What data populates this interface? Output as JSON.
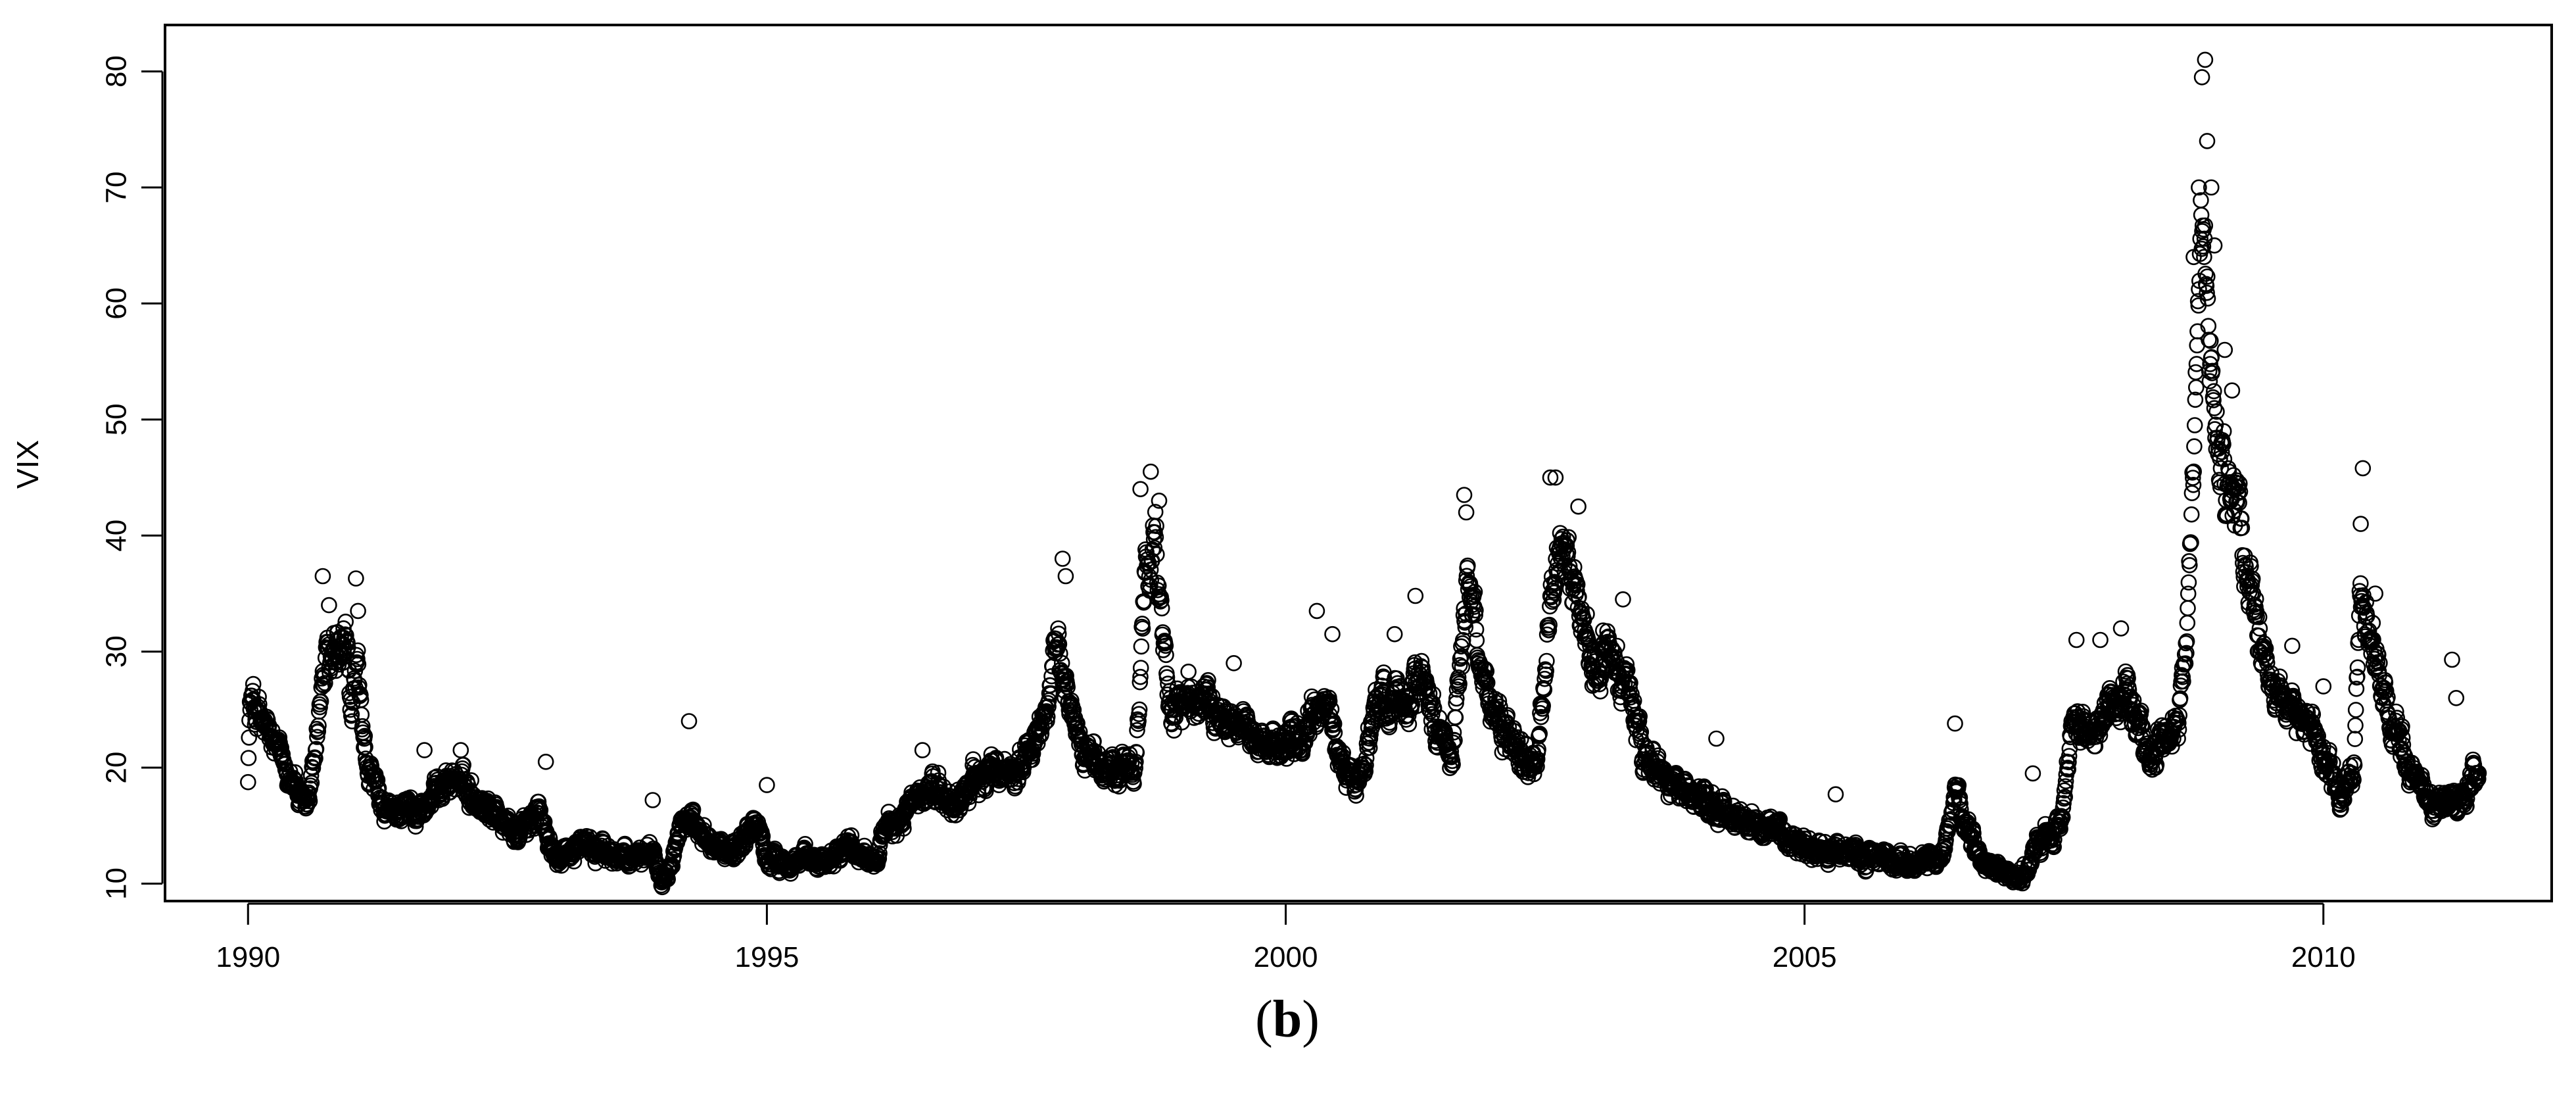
{
  "chart_data": {
    "type": "scatter",
    "marker": "open-circle",
    "ylabel": "VIX",
    "xlabel": "",
    "panel_label": {
      "open": "(",
      "letter": "b",
      "close": ")"
    },
    "xlim": [
      1989.2,
      2012.2
    ],
    "ylim": [
      8.5,
      84
    ],
    "x_ticks": [
      1990,
      1995,
      2000,
      2005,
      2010
    ],
    "y_ticks": [
      10,
      20,
      30,
      40,
      50,
      60,
      70,
      80
    ],
    "grid": false,
    "legend": "none",
    "sample_step_years": 0.0045,
    "series": [
      {
        "x_start": 1990.0,
        "x_end": 2011.5,
        "level_points": [
          [
            1990.0,
            20
          ],
          [
            1990.02,
            25.5
          ],
          [
            1990.08,
            25
          ],
          [
            1990.15,
            23.5
          ],
          [
            1990.3,
            21
          ],
          [
            1990.45,
            19
          ],
          [
            1990.5,
            17
          ],
          [
            1990.55,
            16
          ],
          [
            1990.6,
            18
          ],
          [
            1990.65,
            22
          ],
          [
            1990.7,
            26
          ],
          [
            1990.75,
            29
          ],
          [
            1990.85,
            29
          ],
          [
            1990.95,
            30
          ],
          [
            1991.0,
            24
          ],
          [
            1991.05,
            30
          ],
          [
            1991.1,
            22
          ],
          [
            1991.2,
            19
          ],
          [
            1991.3,
            16
          ],
          [
            1991.5,
            16.5
          ],
          [
            1991.7,
            16.5
          ],
          [
            1991.9,
            19
          ],
          [
            1992.0,
            19
          ],
          [
            1992.2,
            17.5
          ],
          [
            1992.4,
            16
          ],
          [
            1992.6,
            14
          ],
          [
            1992.8,
            16.5
          ],
          [
            1992.9,
            13
          ],
          [
            1993.0,
            12.5
          ],
          [
            1993.2,
            13.5
          ],
          [
            1993.5,
            12.5
          ],
          [
            1993.7,
            12
          ],
          [
            1993.9,
            13
          ],
          [
            1994.0,
            10.5
          ],
          [
            1994.1,
            13
          ],
          [
            1994.2,
            16
          ],
          [
            1994.3,
            14.5
          ],
          [
            1994.5,
            13
          ],
          [
            1994.7,
            13
          ],
          [
            1994.9,
            15.5
          ],
          [
            1995.0,
            12
          ],
          [
            1995.2,
            12
          ],
          [
            1995.5,
            12
          ],
          [
            1995.8,
            13.5
          ],
          [
            1996.0,
            12
          ],
          [
            1996.2,
            15
          ],
          [
            1996.4,
            16.5
          ],
          [
            1996.6,
            18.5
          ],
          [
            1996.8,
            16.5
          ],
          [
            1997.0,
            19
          ],
          [
            1997.2,
            19.5
          ],
          [
            1997.4,
            20
          ],
          [
            1997.6,
            22
          ],
          [
            1997.8,
            30
          ],
          [
            1997.9,
            26
          ],
          [
            1998.0,
            23
          ],
          [
            1998.2,
            20
          ],
          [
            1998.45,
            20
          ],
          [
            1998.55,
            19
          ],
          [
            1998.65,
            38
          ],
          [
            1998.75,
            40
          ],
          [
            1998.8,
            32
          ],
          [
            1998.9,
            25
          ],
          [
            1999.1,
            26
          ],
          [
            1999.5,
            24
          ],
          [
            1999.8,
            22
          ],
          [
            2000.0,
            22
          ],
          [
            2000.2,
            23
          ],
          [
            2000.4,
            26
          ],
          [
            2000.5,
            21
          ],
          [
            2000.7,
            18.5
          ],
          [
            2000.9,
            26
          ],
          [
            2001.1,
            26
          ],
          [
            2001.3,
            28
          ],
          [
            2001.45,
            24
          ],
          [
            2001.6,
            21
          ],
          [
            2001.7,
            30
          ],
          [
            2001.75,
            37
          ],
          [
            2001.85,
            31
          ],
          [
            2002.0,
            24
          ],
          [
            2002.2,
            22
          ],
          [
            2002.4,
            20
          ],
          [
            2002.5,
            28
          ],
          [
            2002.6,
            38
          ],
          [
            2002.75,
            36
          ],
          [
            2002.85,
            33
          ],
          [
            2002.95,
            28
          ],
          [
            2003.1,
            30
          ],
          [
            2003.3,
            27
          ],
          [
            2003.45,
            21
          ],
          [
            2003.7,
            19
          ],
          [
            2004.0,
            17
          ],
          [
            2004.3,
            16
          ],
          [
            2004.6,
            15
          ],
          [
            2004.9,
            14
          ],
          [
            2005.1,
            13
          ],
          [
            2005.5,
            12.5
          ],
          [
            2005.9,
            12
          ],
          [
            2006.2,
            12
          ],
          [
            2006.35,
            13
          ],
          [
            2006.45,
            17
          ],
          [
            2006.55,
            15
          ],
          [
            2006.7,
            12
          ],
          [
            2006.9,
            11
          ],
          [
            2007.0,
            10.5
          ],
          [
            2007.15,
            11
          ],
          [
            2007.25,
            14
          ],
          [
            2007.4,
            14
          ],
          [
            2007.5,
            17
          ],
          [
            2007.6,
            25
          ],
          [
            2007.75,
            22
          ],
          [
            2007.9,
            25
          ],
          [
            2008.0,
            25
          ],
          [
            2008.1,
            27
          ],
          [
            2008.2,
            24
          ],
          [
            2008.35,
            21
          ],
          [
            2008.5,
            22
          ],
          [
            2008.6,
            23
          ],
          [
            2008.7,
            33
          ],
          [
            2008.78,
            55
          ],
          [
            2008.82,
            66
          ],
          [
            2008.9,
            58
          ],
          [
            2008.95,
            50
          ],
          [
            2009.0,
            45
          ],
          [
            2009.15,
            44
          ],
          [
            2009.3,
            36
          ],
          [
            2009.45,
            29
          ],
          [
            2009.6,
            26
          ],
          [
            2009.8,
            24
          ],
          [
            2009.9,
            23
          ],
          [
            2010.0,
            21
          ],
          [
            2010.2,
            17
          ],
          [
            2010.3,
            20
          ],
          [
            2010.35,
            34
          ],
          [
            2010.45,
            32
          ],
          [
            2010.55,
            27
          ],
          [
            2010.7,
            24
          ],
          [
            2010.9,
            19
          ],
          [
            2011.0,
            17
          ],
          [
            2011.2,
            17
          ],
          [
            2011.35,
            17
          ],
          [
            2011.45,
            19
          ],
          [
            2011.5,
            19
          ]
        ],
        "spikes": [
          [
            1990.05,
            27.2
          ],
          [
            1990.72,
            36.5
          ],
          [
            1990.78,
            34
          ],
          [
            1990.92,
            32
          ],
          [
            1991.04,
            36.3
          ],
          [
            1991.06,
            33.5
          ],
          [
            1991.7,
            21.5
          ],
          [
            1992.05,
            21.5
          ],
          [
            1992.87,
            20.5
          ],
          [
            1993.9,
            17.2
          ],
          [
            1994.25,
            24
          ],
          [
            1995.0,
            18.5
          ],
          [
            1996.5,
            21.5
          ],
          [
            1997.85,
            38
          ],
          [
            1997.88,
            36.5
          ],
          [
            1998.6,
            44
          ],
          [
            1998.7,
            45.5
          ],
          [
            1998.78,
            43
          ],
          [
            1999.5,
            29
          ],
          [
            2000.3,
            33.5
          ],
          [
            2000.45,
            31.5
          ],
          [
            2001.05,
            31.5
          ],
          [
            2001.25,
            34.8
          ],
          [
            2001.72,
            43.5
          ],
          [
            2001.74,
            42
          ],
          [
            2002.55,
            45
          ],
          [
            2002.6,
            45
          ],
          [
            2002.82,
            42.5
          ],
          [
            2003.25,
            34.5
          ],
          [
            2004.15,
            22.5
          ],
          [
            2005.3,
            17.7
          ],
          [
            2006.45,
            23.8
          ],
          [
            2007.2,
            19.5
          ],
          [
            2007.62,
            31
          ],
          [
            2007.85,
            31
          ],
          [
            2008.05,
            32
          ],
          [
            2008.75,
            64
          ],
          [
            2008.8,
            70
          ],
          [
            2008.83,
            79.5
          ],
          [
            2008.86,
            81
          ],
          [
            2008.88,
            74
          ],
          [
            2008.92,
            70
          ],
          [
            2008.95,
            65
          ],
          [
            2009.05,
            56
          ],
          [
            2009.12,
            52.5
          ],
          [
            2009.7,
            30.5
          ],
          [
            2010.0,
            27
          ],
          [
            2010.38,
            45.8
          ],
          [
            2010.36,
            41
          ],
          [
            2010.5,
            35
          ],
          [
            2011.24,
            29.3
          ],
          [
            2011.28,
            26
          ]
        ]
      }
    ]
  }
}
